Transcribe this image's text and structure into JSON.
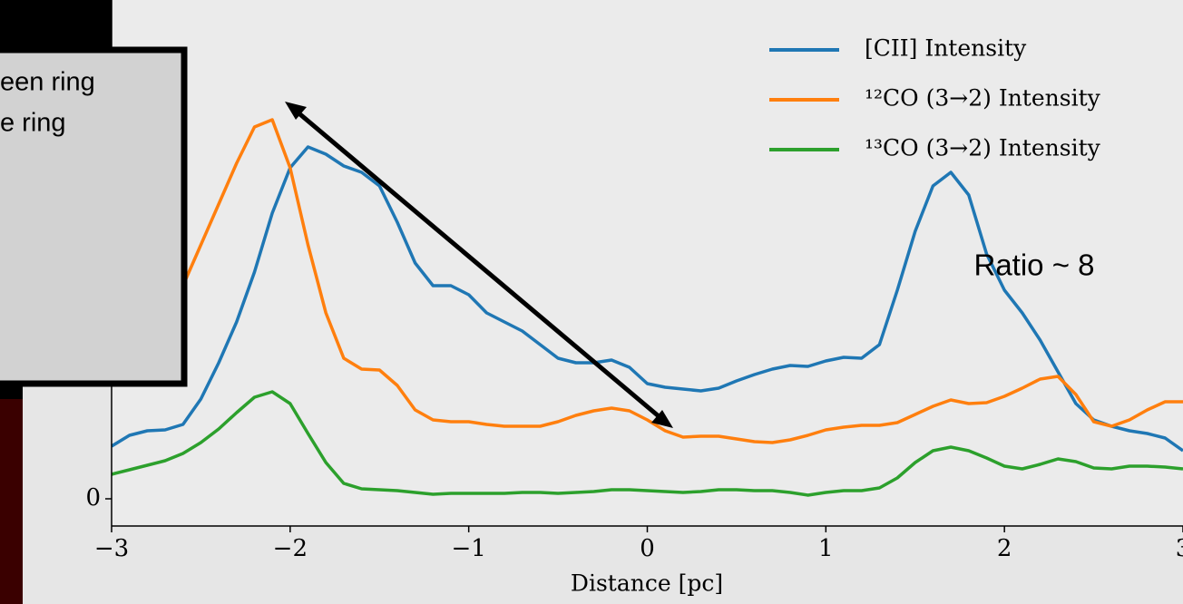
{
  "chart_data": {
    "type": "line",
    "xlabel": "Distance [pc]",
    "x": [
      -3,
      -2.9,
      -2.8,
      -2.7,
      -2.6,
      -2.5,
      -2.4,
      -2.3,
      -2.2,
      -2.1,
      -2,
      -1.9,
      -1.8,
      -1.7,
      -1.6,
      -1.5,
      -1.4,
      -1.3,
      -1.2,
      -1.1,
      -1,
      -0.9,
      -0.8,
      -0.7,
      -0.6,
      -0.5,
      -0.4,
      -0.3,
      -0.2,
      -0.1,
      0,
      0.1,
      0.2,
      0.3,
      0.4,
      0.5,
      0.6,
      0.7,
      0.8,
      0.9,
      1,
      1.1,
      1.2,
      1.3,
      1.4,
      1.5,
      1.6,
      1.7,
      1.8,
      1.9,
      2,
      2.1,
      2.2,
      2.3,
      2.4,
      2.5,
      2.6,
      2.7,
      2.8,
      2.9,
      3
    ],
    "series": [
      {
        "name": "[CII] Intensity",
        "color": "#1f77b4",
        "values": [
          0.58,
          0.7,
          0.75,
          0.76,
          0.82,
          1.1,
          1.5,
          1.95,
          2.5,
          3.15,
          3.65,
          3.88,
          3.8,
          3.67,
          3.6,
          3.45,
          3.05,
          2.6,
          2.35,
          2.35,
          2.25,
          2.05,
          1.95,
          1.85,
          1.7,
          1.55,
          1.5,
          1.5,
          1.53,
          1.45,
          1.27,
          1.23,
          1.21,
          1.19,
          1.22,
          1.3,
          1.37,
          1.43,
          1.47,
          1.46,
          1.52,
          1.56,
          1.55,
          1.7,
          2.3,
          2.95,
          3.45,
          3.6,
          3.35,
          2.7,
          2.3,
          2.05,
          1.75,
          1.4,
          1.05,
          0.87,
          0.8,
          0.75,
          0.72,
          0.67,
          0.53
        ]
      },
      {
        "name": "¹²CO (3→2) Intensity",
        "color": "#ff7f0e",
        "values": [
          null,
          null,
          null,
          null,
          2.35,
          2.8,
          3.25,
          3.7,
          4.1,
          4.18,
          3.65,
          2.8,
          2.05,
          1.55,
          1.43,
          1.42,
          1.25,
          0.98,
          0.87,
          0.85,
          0.85,
          0.82,
          0.8,
          0.8,
          0.8,
          0.85,
          0.92,
          0.97,
          1.0,
          0.97,
          0.87,
          0.75,
          0.68,
          0.69,
          0.69,
          0.66,
          0.63,
          0.62,
          0.65,
          0.7,
          0.76,
          0.79,
          0.81,
          0.81,
          0.84,
          0.93,
          1.02,
          1.09,
          1.05,
          1.06,
          1.13,
          1.22,
          1.32,
          1.35,
          1.15,
          0.85,
          0.8,
          0.87,
          0.98,
          1.07,
          1.07
        ]
      },
      {
        "name": "¹³CO (3→2) Intensity",
        "color": "#2ca02c",
        "values": [
          0.27,
          0.32,
          0.37,
          0.42,
          0.5,
          0.62,
          0.77,
          0.95,
          1.12,
          1.18,
          1.05,
          0.72,
          0.4,
          0.17,
          0.11,
          0.1,
          0.09,
          0.07,
          0.05,
          0.06,
          0.06,
          0.06,
          0.06,
          0.07,
          0.07,
          0.06,
          0.07,
          0.08,
          0.1,
          0.1,
          0.09,
          0.08,
          0.07,
          0.08,
          0.1,
          0.1,
          0.09,
          0.09,
          0.07,
          0.04,
          0.07,
          0.09,
          0.09,
          0.12,
          0.23,
          0.4,
          0.53,
          0.57,
          0.53,
          0.45,
          0.36,
          0.33,
          0.38,
          0.44,
          0.41,
          0.34,
          0.33,
          0.36,
          0.36,
          0.35,
          0.33
        ]
      }
    ],
    "xlim": [
      -3,
      3
    ],
    "xticks": [
      {
        "value": -3,
        "label": "−3"
      },
      {
        "value": -2,
        "label": "−2"
      },
      {
        "value": -1,
        "label": "−1"
      },
      0,
      1,
      2,
      3
    ],
    "ylim": [
      -0.3,
      5.5
    ],
    "yticks": [
      0
    ],
    "legend": "upper right",
    "annotations": [
      "Ratio ~ 8"
    ]
  },
  "slide": {
    "text_box": [
      "een ring",
      "e ring"
    ]
  }
}
